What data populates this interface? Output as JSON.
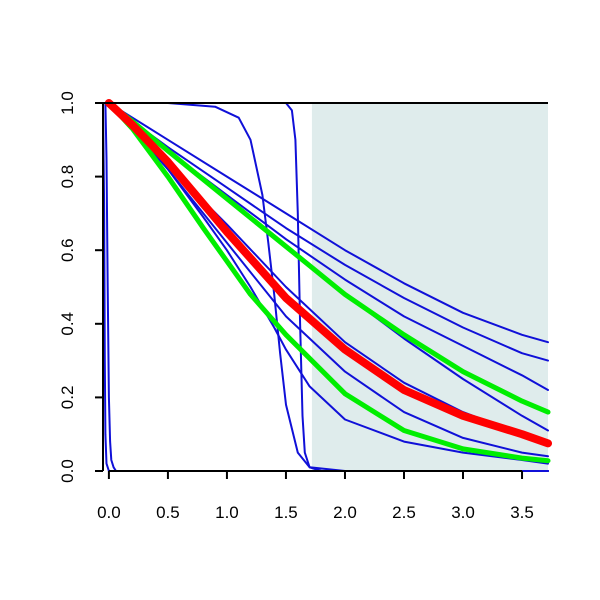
{
  "chart_data": {
    "type": "line",
    "title": "",
    "xlabel": "",
    "ylabel": "",
    "xlim": [
      -0.05,
      3.72
    ],
    "ylim": [
      0,
      1
    ],
    "x_ticks": [
      0.0,
      0.5,
      1.0,
      1.5,
      2.0,
      2.5,
      3.0,
      3.5
    ],
    "x_tick_labels": [
      "0.0",
      "0.5",
      "1.0",
      "1.5",
      "2.0",
      "2.5",
      "3.0",
      "3.5"
    ],
    "y_ticks": [
      0.0,
      0.2,
      0.4,
      0.6,
      0.8,
      1.0
    ],
    "y_tick_labels": [
      "0.0",
      "0.2",
      "0.4",
      "0.6",
      "0.8",
      "1.0"
    ],
    "grid": false,
    "legend": "none",
    "shaded_region": {
      "x_from": 1.72,
      "x_to": 3.72,
      "y_from": 0.0,
      "y_to": 1.0,
      "color": "#dfecec"
    },
    "colors": {
      "blue": "#1010d8",
      "red": "#ff0000",
      "green": "#00ee00",
      "axis": "#000000"
    },
    "series": [
      {
        "color": "blue",
        "width": 2,
        "x": [
          -0.05,
          0,
          0.2,
          0.5,
          1.0,
          1.5,
          2.0,
          2.5,
          3.0,
          3.5,
          3.72
        ],
        "y": [
          1,
          1,
          0.96,
          0.9,
          0.8,
          0.7,
          0.6,
          0.51,
          0.43,
          0.37,
          0.35
        ]
      },
      {
        "color": "blue",
        "width": 2,
        "x": [
          -0.05,
          0,
          0.2,
          0.5,
          1.0,
          1.5,
          2.0,
          2.5,
          3.0,
          3.5,
          3.72
        ],
        "y": [
          1,
          1,
          0.95,
          0.88,
          0.77,
          0.66,
          0.56,
          0.47,
          0.39,
          0.32,
          0.3
        ]
      },
      {
        "color": "blue",
        "width": 2,
        "x": [
          -0.05,
          0,
          0.2,
          0.5,
          1.0,
          1.5,
          2.0,
          2.5,
          3.0,
          3.5,
          3.72
        ],
        "y": [
          1,
          1,
          0.95,
          0.87,
          0.75,
          0.63,
          0.52,
          0.42,
          0.34,
          0.26,
          0.22
        ]
      },
      {
        "color": "blue",
        "width": 2,
        "x": [
          -0.05,
          0,
          0.2,
          0.5,
          1.0,
          1.5,
          2.0,
          2.5,
          3.0,
          3.5,
          3.72
        ],
        "y": [
          1,
          1,
          0.95,
          0.87,
          0.74,
          0.61,
          0.48,
          0.36,
          0.25,
          0.15,
          0.11
        ]
      },
      {
        "color": "blue",
        "width": 2,
        "x": [
          -0.05,
          0,
          0.2,
          0.5,
          1.0,
          1.5,
          2.0,
          2.5,
          3.0,
          3.5,
          3.72
        ],
        "y": [
          1,
          1,
          0.94,
          0.83,
          0.67,
          0.5,
          0.35,
          0.24,
          0.16,
          0.1,
          0.08
        ]
      },
      {
        "color": "blue",
        "width": 2,
        "x": [
          -0.05,
          0,
          0.2,
          0.5,
          1.0,
          1.5,
          2.0,
          2.5,
          3.0,
          3.5,
          3.72
        ],
        "y": [
          1,
          1,
          0.93,
          0.82,
          0.62,
          0.42,
          0.27,
          0.16,
          0.09,
          0.05,
          0.04
        ]
      },
      {
        "color": "blue",
        "width": 2,
        "x": [
          -0.05,
          0,
          0.2,
          0.5,
          0.8,
          1.0,
          1.2,
          1.4,
          1.5,
          1.7,
          2.0,
          2.5,
          3.0,
          3.5,
          3.72
        ],
        "y": [
          1,
          1,
          0.93,
          0.82,
          0.69,
          0.6,
          0.5,
          0.39,
          0.33,
          0.23,
          0.14,
          0.08,
          0.05,
          0.03,
          0.02
        ]
      },
      {
        "color": "blue",
        "width": 2,
        "x": [
          -0.05,
          0,
          0.5,
          0.9,
          1.1,
          1.2,
          1.3,
          1.35,
          1.4,
          1.45,
          1.5,
          1.6,
          1.7,
          1.8,
          2.0,
          3.72
        ],
        "y": [
          1,
          1,
          1,
          0.99,
          0.96,
          0.9,
          0.75,
          0.62,
          0.48,
          0.32,
          0.18,
          0.05,
          0.01,
          0,
          0,
          0
        ]
      },
      {
        "color": "blue",
        "width": 2,
        "x": [
          -0.05,
          0,
          0.5,
          1.0,
          1.5,
          1.55,
          1.58,
          1.6,
          1.62,
          1.64,
          1.66,
          1.7,
          2.0,
          3.72
        ],
        "y": [
          1,
          1,
          1,
          1,
          1,
          0.98,
          0.9,
          0.7,
          0.4,
          0.15,
          0.05,
          0.01,
          0,
          0
        ]
      },
      {
        "color": "blue",
        "width": 2,
        "x": [
          -0.05,
          -0.03,
          -0.02,
          -0.01,
          0,
          0.01,
          0.02,
          0.04,
          0.06,
          0.1,
          3.72
        ],
        "y": [
          1,
          1,
          0.85,
          0.5,
          0.2,
          0.08,
          0.03,
          0.01,
          0,
          0,
          0
        ]
      },
      {
        "color": "blue",
        "width": 2,
        "x": [
          -0.05,
          -0.04,
          -0.035,
          -0.03,
          -0.02,
          0,
          3.72
        ],
        "y": [
          1,
          0.7,
          0.3,
          0.1,
          0.02,
          0,
          0
        ]
      },
      {
        "color": "green",
        "width": 5,
        "x": [
          0,
          0.2,
          0.5,
          1.0,
          1.5,
          2.0,
          2.5,
          3.0,
          3.5,
          3.72
        ],
        "y": [
          1,
          0.95,
          0.87,
          0.74,
          0.61,
          0.48,
          0.37,
          0.27,
          0.19,
          0.16
        ]
      },
      {
        "color": "green",
        "width": 5,
        "x": [
          0,
          0.2,
          0.5,
          0.8,
          1.0,
          1.2,
          1.5,
          2.0,
          2.5,
          3.0,
          3.5,
          3.72
        ],
        "y": [
          1,
          0.93,
          0.8,
          0.66,
          0.57,
          0.48,
          0.37,
          0.21,
          0.11,
          0.06,
          0.035,
          0.028
        ]
      },
      {
        "color": "red",
        "width": 8,
        "x": [
          0,
          0.2,
          0.5,
          1.0,
          1.5,
          2.0,
          2.5,
          3.0,
          3.5,
          3.72
        ],
        "y": [
          1,
          0.94,
          0.84,
          0.65,
          0.47,
          0.33,
          0.22,
          0.15,
          0.1,
          0.075
        ]
      }
    ]
  }
}
